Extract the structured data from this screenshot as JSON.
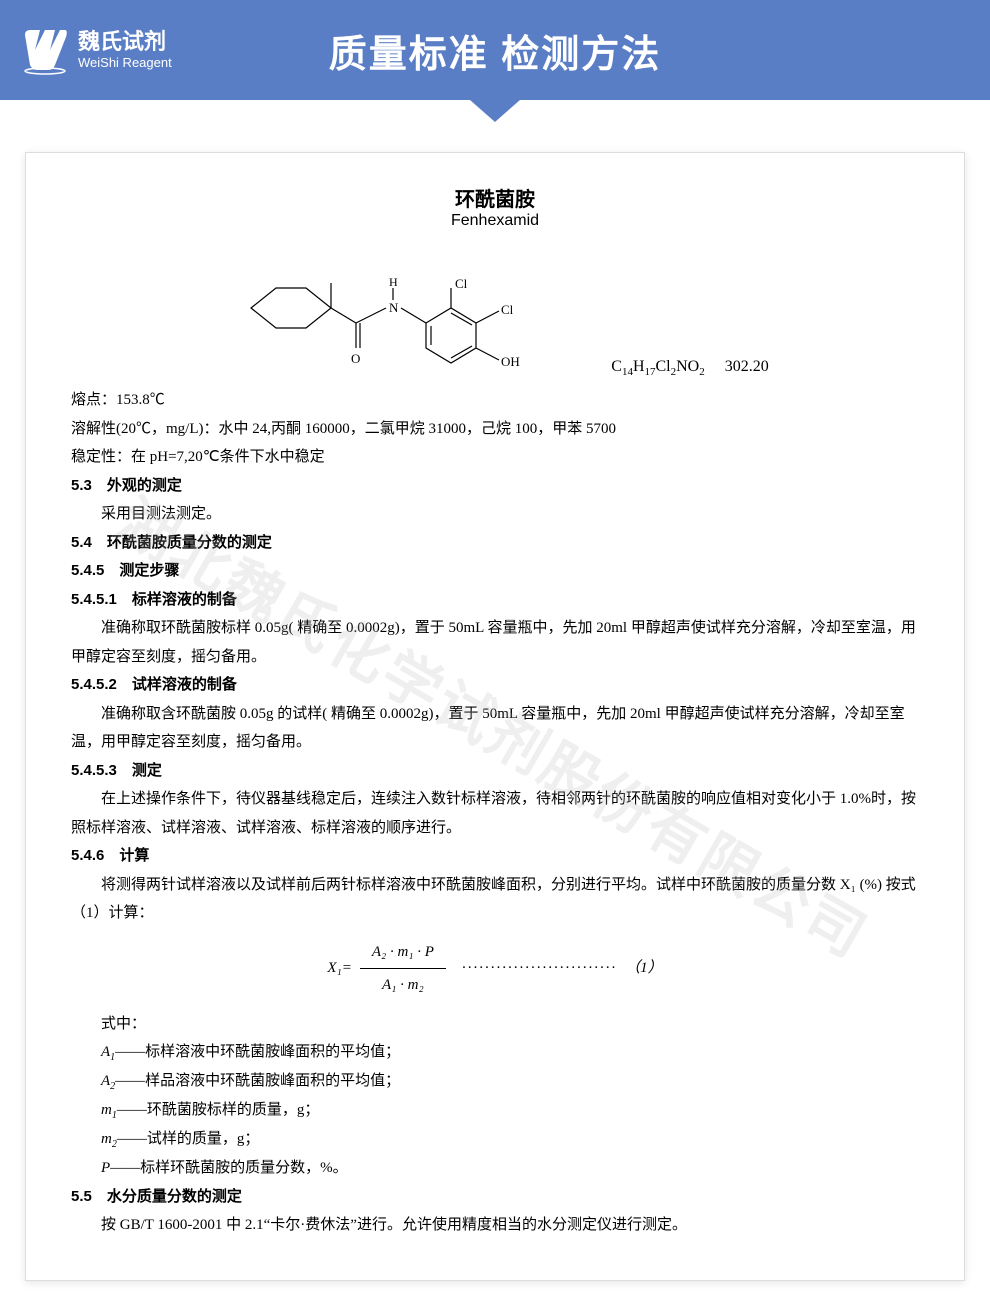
{
  "header": {
    "logo_cn": "魏氏试剂",
    "logo_en": "WeiShi Reagent",
    "title": "质量标准 检测方法"
  },
  "watermark": "湖北魏氏化学试剂股份有限公司",
  "compound": {
    "name_cn": "环酰菌胺",
    "name_en": "Fenhexamid",
    "formula_html": "C<sub>14</sub>H<sub>17</sub>Cl<sub>2</sub>NO<sub>2</sub>",
    "mw": "302.20",
    "structure": {
      "atoms": [
        "Cl",
        "Cl",
        "OH",
        "H",
        "N",
        "O"
      ],
      "colors": {
        "line": "#000000"
      }
    }
  },
  "props": {
    "mp": "熔点：153.8℃",
    "solubility": "溶解性(20℃，mg/L)：水中 24,丙酮 160000，二氯甲烷 31000，己烷 100，甲苯 5700",
    "stability": "稳定性：在 pH=7,20℃条件下水中稳定"
  },
  "sections": {
    "s53": {
      "num": "5.3",
      "title": "外观的测定",
      "body": "采用目测法测定。"
    },
    "s54": {
      "num": "5.4",
      "title": "环酰菌胺质量分数的测定"
    },
    "s545": {
      "num": "5.4.5",
      "title": "测定步骤"
    },
    "s5451": {
      "num": "5.4.5.1",
      "title": "标样溶液的制备",
      "body": "准确称取环酰菌胺标样 0.05g( 精确至 0.0002g)，置于 50mL 容量瓶中，先加 20ml 甲醇超声使试样充分溶解，冷却至室温，用甲醇定容至刻度，摇匀备用。"
    },
    "s5452": {
      "num": "5.4.5.2",
      "title": "试样溶液的制备",
      "body": "准确称取含环酰菌胺 0.05g 的试样( 精确至 0.0002g)，置于 50mL 容量瓶中，先加 20ml 甲醇超声使试样充分溶解，冷却至室温，用甲醇定容至刻度，摇匀备用。"
    },
    "s5453": {
      "num": "5.4.5.3",
      "title": "测定",
      "body": "在上述操作条件下，待仪器基线稳定后，连续注入数针标样溶液，待相邻两针的环酰菌胺的响应值相对变化小于 1.0%时，按照标样溶液、试样溶液、试样溶液、标样溶液的顺序进行。"
    },
    "s546": {
      "num": "5.4.6",
      "title": "计算",
      "body": "将测得两针试样溶液以及试样前后两针标样溶液中环酰菌胺峰面积，分别进行平均。试样中环酰菌胺的质量分数 X₁ (%) 按式（1）计算："
    },
    "formula": {
      "lhs": "X₁=",
      "num": "A₂ · m₁ · P",
      "den": "A₁ · m₂",
      "eq_no": "（1）"
    },
    "where_label": "式中：",
    "defs": {
      "A1": "——标样溶液中环酰菌胺峰面积的平均值；",
      "A2": "——样品溶液中环酰菌胺峰面积的平均值；",
      "m1": "——环酰菌胺标样的质量，g；",
      "m2": "——试样的质量，g；",
      "P": "——标样环酰菌胺的质量分数，%。"
    },
    "s55": {
      "num": "5.5",
      "title": "水分质量分数的测定",
      "body": "按 GB/T 1600-2001 中 2.1“卡尔·费休法”进行。允许使用精度相当的水分测定仪进行测定。"
    }
  }
}
